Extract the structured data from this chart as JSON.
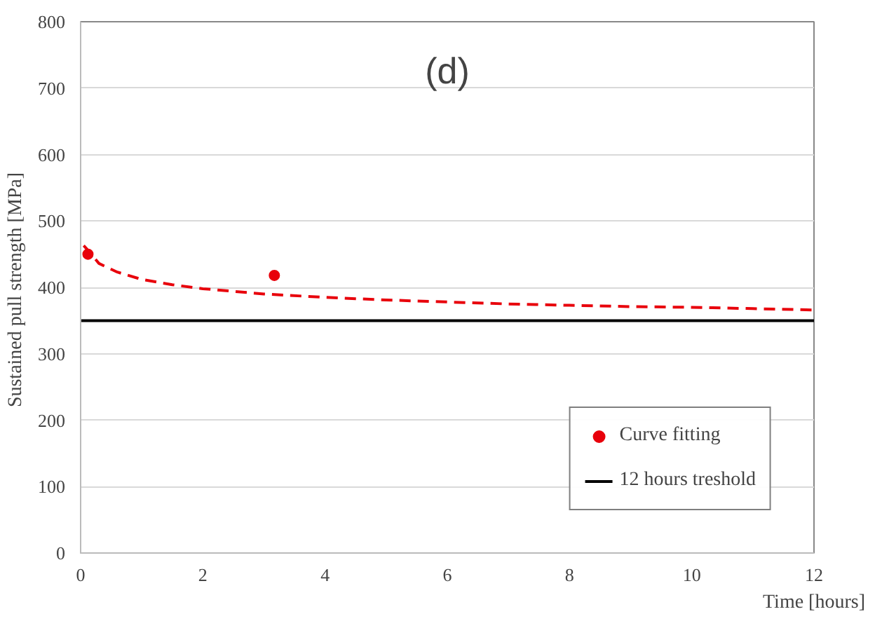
{
  "chart_data": {
    "type": "scatter",
    "xlabel": "Time [hours]",
    "ylabel": "Sustained pull strength  [MPa]",
    "annotations": [
      "(d)"
    ],
    "series": [
      {
        "name": "Curve fitting",
        "color": "#e8000b",
        "x": [
          0.12,
          3.17
        ],
        "values": [
          450,
          418
        ]
      },
      {
        "type": "line",
        "color": "#e8000b",
        "line_style": "dashed",
        "marker": "none",
        "x": [
          0.05,
          0.1,
          0.3,
          0.6,
          1,
          1.5,
          2,
          3,
          4,
          5,
          6,
          7,
          8,
          9,
          10,
          11,
          12
        ],
        "values": [
          463,
          458,
          436,
          423,
          412,
          404,
          398,
          390,
          385,
          381,
          378,
          375,
          373,
          371,
          370,
          368,
          366
        ]
      }
    ],
    "ref_lines": [
      {
        "axis": "y",
        "value": 350,
        "label": "12 hours treshold",
        "color": "#000000"
      }
    ],
    "xlim": [
      0,
      12
    ],
    "xticks": [
      0,
      2,
      4,
      6,
      8,
      10,
      12
    ],
    "ylim": [
      0,
      800
    ],
    "yticks": [
      0,
      100,
      200,
      300,
      400,
      500,
      600,
      700,
      800
    ],
    "grid": "y",
    "legend": "bottom right",
    "marker": "circle"
  }
}
